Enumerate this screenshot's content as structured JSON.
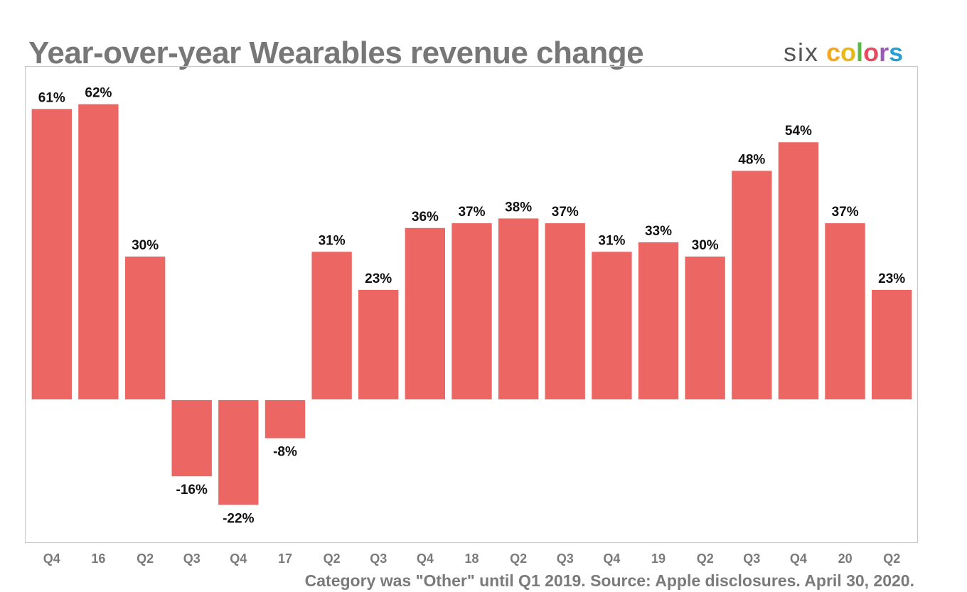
{
  "chart_data": {
    "type": "bar",
    "title": "Year-over-year Wearables revenue change",
    "categories": [
      "Q4",
      "16",
      "Q2",
      "Q3",
      "Q4",
      "17",
      "Q2",
      "Q3",
      "Q4",
      "18",
      "Q2",
      "Q3",
      "Q4",
      "19",
      "Q2",
      "Q3",
      "Q4",
      "20",
      "Q2"
    ],
    "values": [
      61,
      62,
      30,
      -16,
      -22,
      -8,
      31,
      23,
      36,
      37,
      38,
      37,
      31,
      33,
      30,
      48,
      54,
      37,
      23
    ],
    "value_labels": [
      "61%",
      "62%",
      "30%",
      "-16%",
      "-22%",
      "-8%",
      "31%",
      "23%",
      "36%",
      "37%",
      "38%",
      "37%",
      "31%",
      "33%",
      "30%",
      "48%",
      "54%",
      "37%",
      "23%"
    ],
    "ylim": [
      -30,
      70
    ],
    "xlabel": "",
    "ylabel": "",
    "grid": false,
    "bar_color": "#ec6764",
    "footnote": "Category was \"Other\" until Q1 2019.  Source: Apple disclosures. April 30, 2020."
  },
  "brand": {
    "prefix": "six",
    "letters": [
      {
        "char": "c",
        "color": "#f5a623"
      },
      {
        "char": "o",
        "color": "#e8b81a"
      },
      {
        "char": "l",
        "color": "#5bb947"
      },
      {
        "char": "o",
        "color": "#e84a5f"
      },
      {
        "char": "r",
        "color": "#9b59b6"
      },
      {
        "char": "s",
        "color": "#2a9fd6"
      }
    ]
  }
}
